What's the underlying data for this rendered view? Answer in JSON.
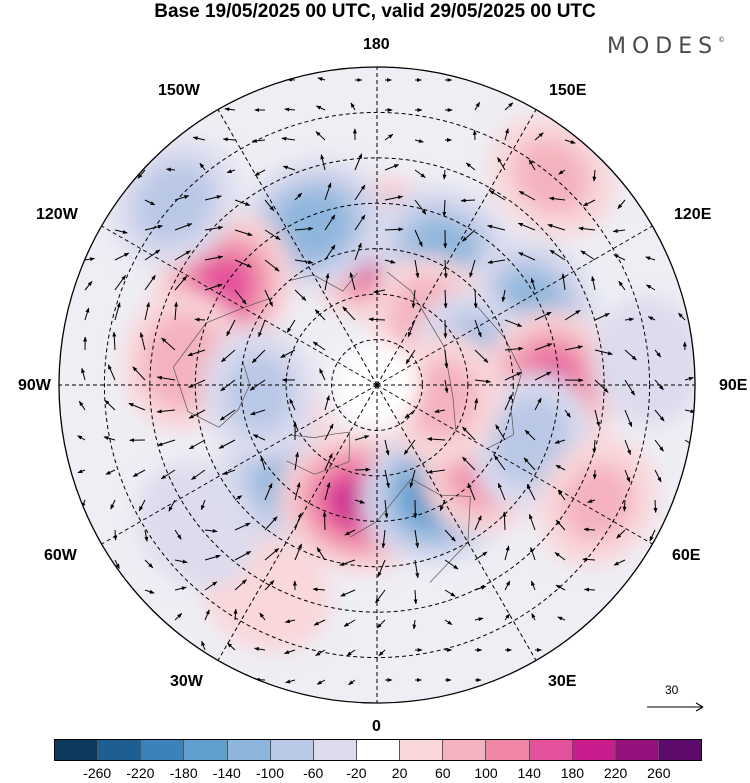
{
  "title": "Base 19/05/2025 00 UTC, valid 29/05/2025 00 UTC",
  "logo": "MODES",
  "logo_mark": "©",
  "longitude_labels": {
    "top": "180",
    "bottom": "0",
    "left": "90W",
    "right": "90E",
    "upper_left_1": "150W",
    "upper_left_2": "120W",
    "upper_right_1": "150E",
    "upper_right_2": "120E",
    "lower_left_1": "60W",
    "lower_left_2": "30W",
    "lower_right_1": "60E",
    "lower_right_2": "30E"
  },
  "wind_scale_label": "30",
  "colorbar": {
    "colors": [
      "#0b3a5c",
      "#1d5f93",
      "#3b82bd",
      "#5f9fcf",
      "#8eb6dc",
      "#b9c8e6",
      "#dcdcee",
      "#ffffff",
      "#f9d7da",
      "#f4b2be",
      "#ef86a6",
      "#e4519b",
      "#c91d8e",
      "#95127c",
      "#5c0a6c"
    ],
    "labels": [
      "-260",
      "-220",
      "-180",
      "-140",
      "-100",
      "-60",
      "-20",
      "20",
      "60",
      "100",
      "140",
      "180",
      "220",
      "260"
    ]
  },
  "anomalies": [
    {
      "name": "pos-180",
      "lon": 178,
      "colat": 30,
      "value": 210
    },
    {
      "name": "neg-160w",
      "lon": -158,
      "colat": 38,
      "value": -130
    },
    {
      "name": "neg-150e",
      "lon": 154,
      "colat": 33,
      "value": -110
    },
    {
      "name": "pos-120w",
      "lon": -122,
      "colat": 40,
      "value": 160
    },
    {
      "name": "neg-135w",
      "lon": -132,
      "colat": 60,
      "value": -70
    },
    {
      "name": "neg-115e",
      "lon": 116,
      "colat": 38,
      "value": -120
    },
    {
      "name": "pos-135e",
      "lon": 137,
      "colat": 19,
      "value": 90
    },
    {
      "name": "neg-105e",
      "lon": 103,
      "colat": 22,
      "value": -110
    },
    {
      "name": "pos-90e",
      "lon": 89,
      "colat": 38,
      "value": 160
    },
    {
      "name": "pos-95w",
      "lon": -97,
      "colat": 43,
      "value": 90
    },
    {
      "name": "pos-65w",
      "lon": -67,
      "colat": 24,
      "value": 40
    },
    {
      "name": "neg-40w",
      "lon": -42,
      "colat": 30,
      "value": -100
    },
    {
      "name": "pos-10w",
      "lon": -8,
      "colat": 26,
      "value": 190
    },
    {
      "name": "neg-30e",
      "lon": 32,
      "colat": 27,
      "value": -200
    },
    {
      "name": "pos-55e",
      "lon": 56,
      "colat": 30,
      "value": 130
    },
    {
      "name": "neg-70e",
      "lon": 70,
      "colat": 36,
      "value": -80
    },
    {
      "name": "pos-80e",
      "lon": 78,
      "colat": 15,
      "value": 60
    },
    {
      "name": "neg-85w",
      "lon": -86,
      "colat": 26,
      "value": -60
    },
    {
      "name": "pos-30w",
      "lon": -28,
      "colat": 52,
      "value": 50
    },
    {
      "name": "neg-50w",
      "lon": -52,
      "colat": 50,
      "value": -50
    },
    {
      "name": "pos-60e-out",
      "lon": 62,
      "colat": 55,
      "value": 60
    },
    {
      "name": "neg-95e-out",
      "lon": 95,
      "colat": 60,
      "value": -40
    },
    {
      "name": "pos-140e",
      "lon": 140,
      "colat": 60,
      "value": 60
    }
  ]
}
